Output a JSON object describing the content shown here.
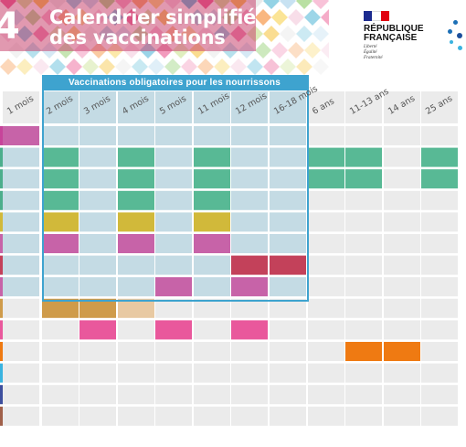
{
  "header": {
    "page_number": "4",
    "title_line1": "Calendrier simplifié",
    "title_line2": "des vaccinations",
    "republique_line1": "RÉPUBLIQUE",
    "republique_line2": "FRANÇAISE",
    "motto": [
      "Liberté",
      "Égalité",
      "Fraternité"
    ]
  },
  "band_label": "Vaccinations obligatoires pour les nourrissons",
  "columns": [
    "1 mois",
    "2 mois",
    "3 mois",
    "4 mois",
    "5 mois",
    "11 mois",
    "12 mois",
    "16-18 mois",
    "6 ans",
    "11-13 ans",
    "14 ans",
    "25 ans"
  ],
  "colors": {
    "green": "#58b995",
    "yellow": "#d1b93a",
    "magenta": "#c763a8",
    "red": "#c3415a",
    "orange_brown": "#cf9b4a",
    "peach": "#e8c9a2",
    "pink": "#e9589c",
    "orange": "#ef7a12",
    "empty": "#ebebeb",
    "mandatory_tint": "#c4dbe4",
    "band": "#3ea3cf"
  },
  "rows": [
    {
      "marker": "#c7449a",
      "cells": [
        "magenta",
        "",
        "",
        "",
        "",
        "",
        "",
        "",
        "",
        "",
        "",
        ""
      ]
    },
    {
      "marker": "#4cae8c",
      "cells": [
        "",
        "green",
        "",
        "green",
        "",
        "green",
        "",
        "",
        "green",
        "green",
        "",
        "green"
      ]
    },
    {
      "marker": "#4cae8c",
      "cells": [
        "",
        "green",
        "",
        "green",
        "",
        "green",
        "",
        "",
        "green",
        "green",
        "",
        "green"
      ]
    },
    {
      "marker": "#4cae8c",
      "cells": [
        "",
        "green",
        "",
        "green",
        "",
        "green",
        "",
        "",
        "",
        "",
        "",
        ""
      ]
    },
    {
      "marker": "#d1b93a",
      "cells": [
        "",
        "yellow",
        "",
        "yellow",
        "",
        "yellow",
        "",
        "",
        "",
        "",
        "",
        ""
      ]
    },
    {
      "marker": "#c763a8",
      "cells": [
        "",
        "magenta",
        "",
        "magenta",
        "",
        "magenta",
        "",
        "",
        "",
        "",
        "",
        ""
      ]
    },
    {
      "marker": "#c3415a",
      "cells": [
        "",
        "",
        "",
        "",
        "",
        "",
        "red",
        "red",
        "",
        "",
        "",
        ""
      ]
    },
    {
      "marker": "#c763a8",
      "cells": [
        "",
        "",
        "",
        "",
        "magenta",
        "",
        "magenta",
        "",
        "",
        "",
        "",
        ""
      ]
    },
    {
      "marker": "#cf9b4a",
      "cells": [
        "",
        "orange_brown",
        "orange_brown",
        "peach",
        "",
        "",
        "",
        "",
        "",
        "",
        "",
        ""
      ]
    },
    {
      "marker": "#e9589c",
      "cells": [
        "",
        "",
        "pink",
        "",
        "pink",
        "",
        "pink",
        "",
        "",
        "",
        "",
        ""
      ]
    },
    {
      "marker": "#ef7a12",
      "cells": [
        "",
        "",
        "",
        "",
        "",
        "",
        "",
        "",
        "",
        "orange",
        "orange",
        ""
      ]
    },
    {
      "marker": "#3ab3e0",
      "cells": [
        "",
        "",
        "",
        "",
        "",
        "",
        "",
        "",
        "",
        "",
        "",
        ""
      ]
    },
    {
      "marker": "#3d4f9e",
      "cells": [
        "",
        "",
        "",
        "",
        "",
        "",
        "",
        "",
        "",
        "",
        "",
        ""
      ]
    },
    {
      "marker": "#a0604a",
      "cells": [
        "",
        "",
        "",
        "",
        "",
        "",
        "",
        "",
        "",
        "",
        "",
        ""
      ]
    }
  ]
}
